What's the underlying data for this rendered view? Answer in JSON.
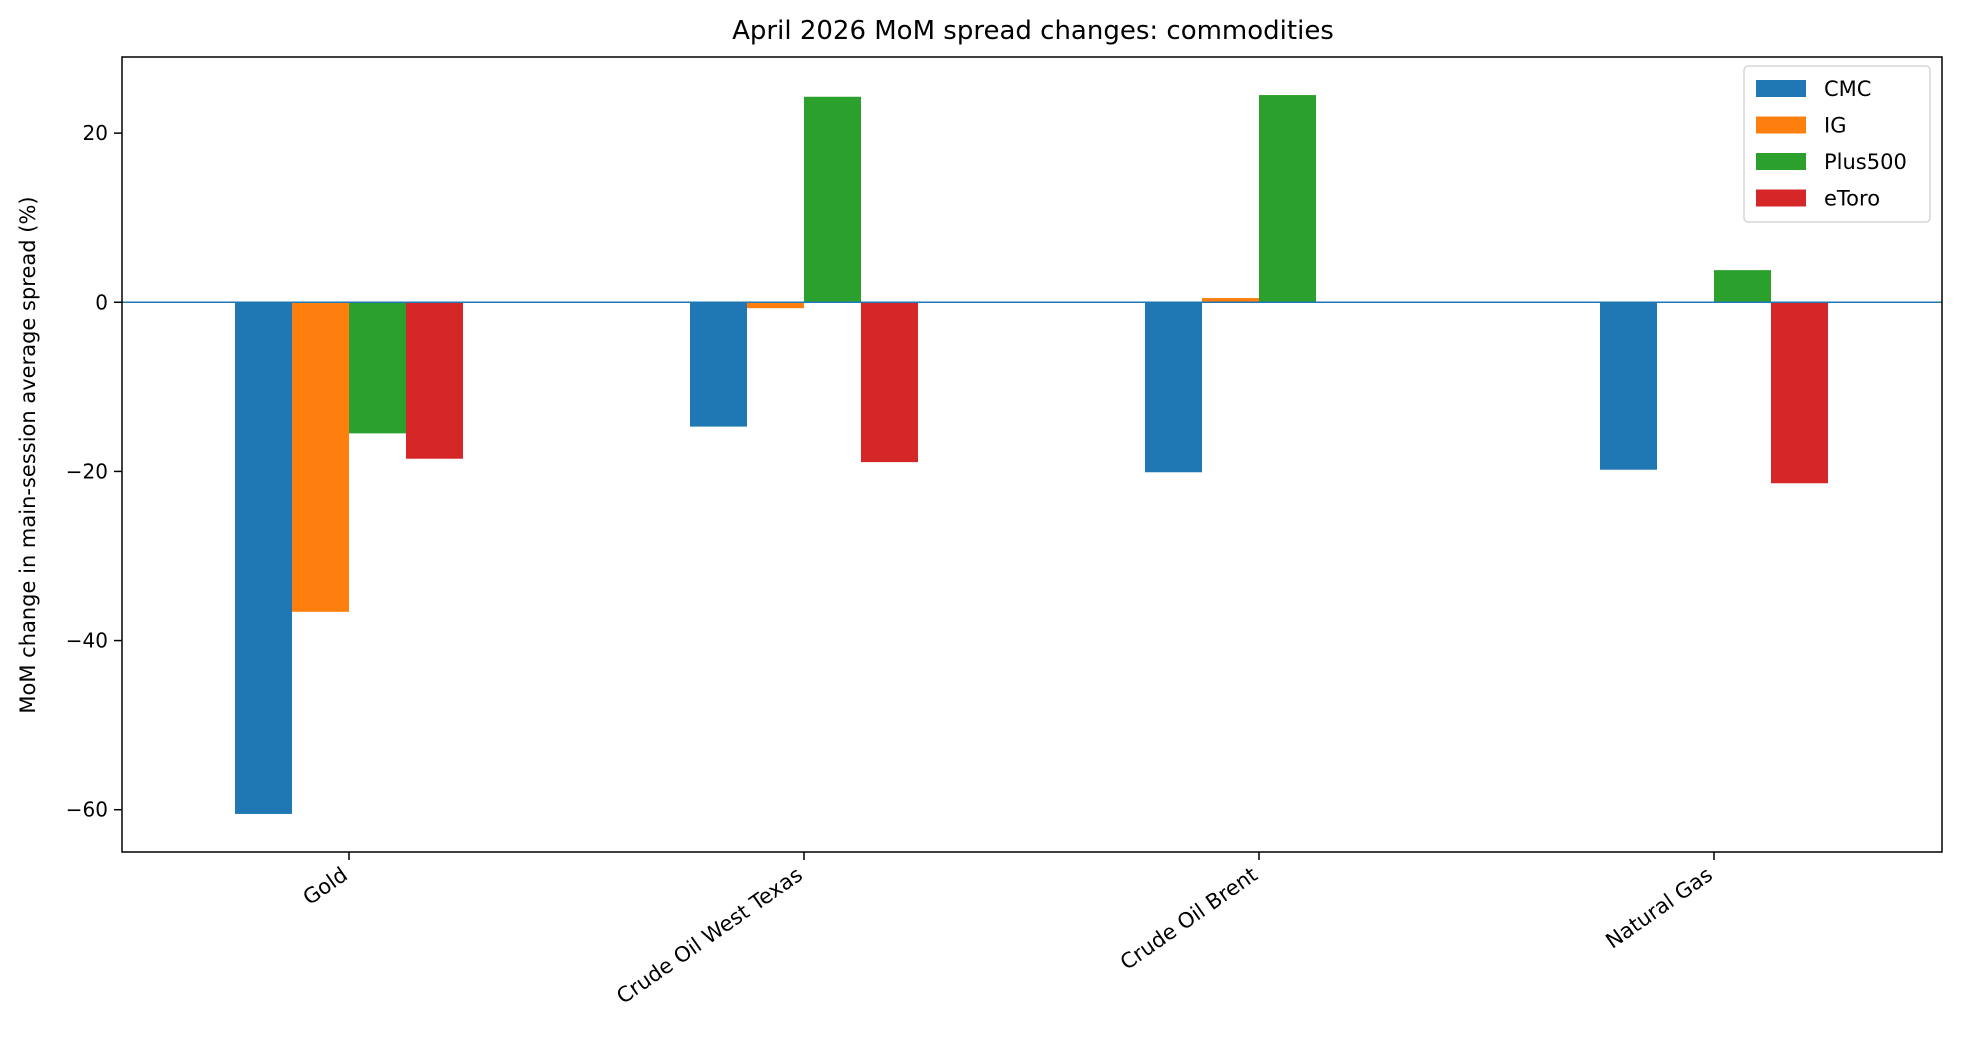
{
  "chart_data": {
    "type": "bar",
    "title": "April 2026 MoM spread changes: commodities",
    "xlabel": "",
    "ylabel": "MoM change in main-session average spread (%)",
    "categories": [
      "Gold",
      "Crude Oil West Texas",
      "Crude Oil Brent",
      "Natural Gas"
    ],
    "series": [
      {
        "name": "CMC",
        "color": "#1f77b4",
        "values": [
          -60.5,
          -14.7,
          -20.1,
          -19.8
        ]
      },
      {
        "name": "IG",
        "color": "#ff7f0e",
        "values": [
          -36.6,
          -0.7,
          0.5,
          0.0
        ]
      },
      {
        "name": "Plus500",
        "color": "#2ca02c",
        "values": [
          -15.5,
          24.3,
          24.5,
          3.8
        ]
      },
      {
        "name": "eToro",
        "color": "#d62728",
        "values": [
          -18.5,
          -18.9,
          0.0,
          -21.4
        ]
      }
    ],
    "ylim": [
      -65,
      29
    ],
    "yticks": [
      -60,
      -40,
      -20,
      0,
      20
    ],
    "ytick_labels": [
      "−60",
      "−40",
      "−20",
      "0",
      "20"
    ],
    "zero_line": true,
    "grid": false,
    "legend": "top-right"
  }
}
